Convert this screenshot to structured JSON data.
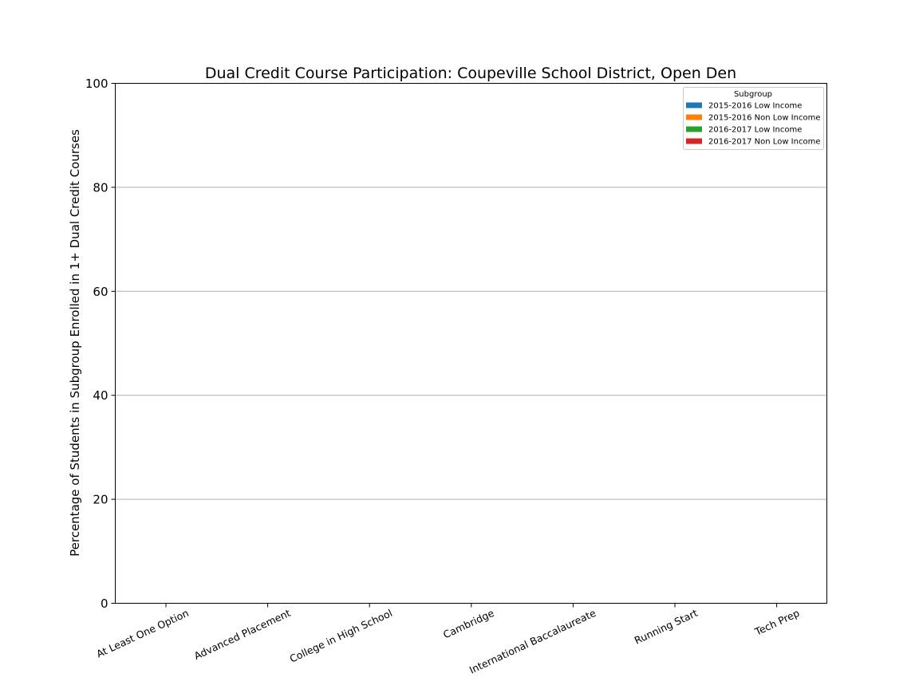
{
  "chart_data": {
    "type": "bar",
    "title": "Dual Credit Course Participation: Coupeville School District, Open Den",
    "xlabel": "",
    "ylabel": "Percentage of Students in Subgroup Enrolled in 1+ Dual Credit Courses",
    "ylim": [
      0,
      100
    ],
    "yticks": [
      0,
      20,
      40,
      60,
      80,
      100
    ],
    "grid": "horizontal",
    "legend_title": "Subgroup",
    "legend_position": "top-right",
    "categories": [
      "At Least One Option",
      "Advanced Placement",
      "College in High School",
      "Cambridge",
      "International Baccalaureate",
      "Running Start",
      "Tech Prep"
    ],
    "series": [
      {
        "name": "2015-2016 Low Income",
        "color": "#1f77b4",
        "values": [
          0,
          0,
          0,
          0,
          0,
          0,
          0
        ]
      },
      {
        "name": "2015-2016 Non Low Income",
        "color": "#ff7f0e",
        "values": [
          0,
          0,
          0,
          0,
          0,
          0,
          0
        ]
      },
      {
        "name": "2016-2017 Low Income",
        "color": "#2ca02c",
        "values": [
          0,
          0,
          0,
          0,
          0,
          0,
          0
        ]
      },
      {
        "name": "2016-2017 Non Low Income",
        "color": "#d62728",
        "values": [
          0,
          0,
          0,
          0,
          0,
          0,
          0
        ]
      }
    ]
  }
}
